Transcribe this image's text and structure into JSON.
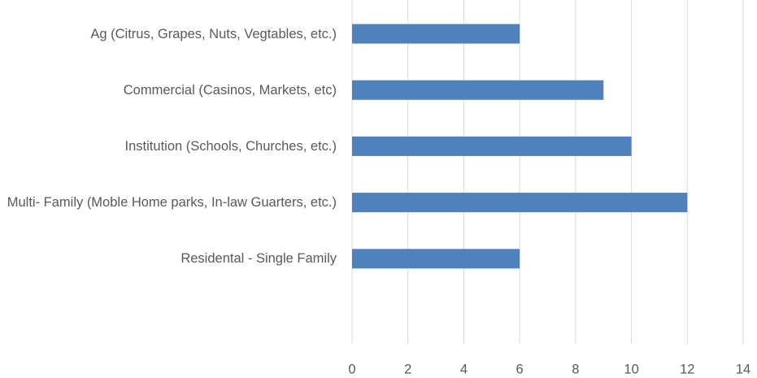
{
  "chart_data": {
    "type": "barh",
    "categories": [
      "Ag (Citrus, Grapes, Nuts, Vegtables, etc.)",
      "Commercial (Casinos, Markets, etc)",
      "Institution (Schools, Churches, etc.)",
      "Multi- Family (Moble Home parks, In-law Guarters, etc.)",
      "Residental - Single Family",
      null
    ],
    "values": [
      6,
      9,
      10,
      12,
      6,
      null
    ],
    "color": "#4f81bd",
    "xlim": [
      0,
      14
    ],
    "xticks": [
      0,
      2,
      4,
      6,
      8,
      10,
      12,
      14
    ],
    "grid": true
  }
}
